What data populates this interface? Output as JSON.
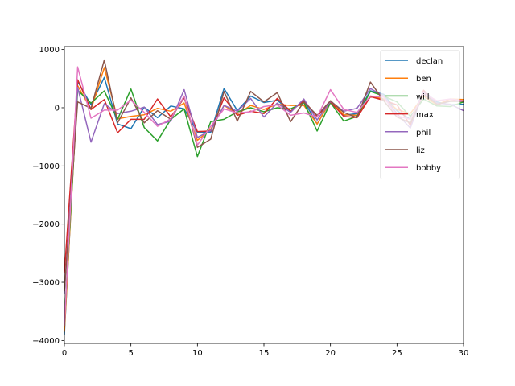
{
  "chart_data": {
    "type": "line",
    "title": "",
    "xlabel": "",
    "ylabel": "",
    "xlim": [
      0,
      30
    ],
    "ylim": [
      -4050,
      1050
    ],
    "xticks": [
      0,
      5,
      10,
      15,
      20,
      25,
      30
    ],
    "yticks": [
      -4000,
      -3000,
      -2000,
      -1000,
      0,
      1000
    ],
    "xtick_labels": [
      "0",
      "5",
      "10",
      "15",
      "20",
      "25",
      "30"
    ],
    "ytick_labels": [
      "−4000",
      "−3000",
      "−2000",
      "−1000",
      "0",
      "1000"
    ],
    "grid": false,
    "legend_position": "top-right",
    "x": [
      0,
      1,
      2,
      3,
      4,
      5,
      6,
      7,
      8,
      9,
      10,
      11,
      12,
      13,
      14,
      15,
      16,
      17,
      18,
      19,
      20,
      21,
      22,
      23,
      24,
      25,
      26,
      27,
      28,
      29,
      30
    ],
    "series": [
      {
        "name": "declan",
        "color": "#1f77b4",
        "values": [
          -3900,
          450,
          50,
          520,
          -280,
          -360,
          10,
          -170,
          30,
          -20,
          -420,
          -420,
          330,
          -50,
          200,
          90,
          130,
          -60,
          120,
          -280,
          110,
          -130,
          -100,
          290,
          230,
          -50,
          -200,
          280,
          100,
          50,
          60
        ]
      },
      {
        "name": "ben",
        "color": "#ff7f0e",
        "values": [
          -3850,
          380,
          -30,
          690,
          -190,
          -150,
          -120,
          -10,
          -60,
          80,
          -560,
          -370,
          40,
          -110,
          40,
          -30,
          60,
          40,
          40,
          -280,
          120,
          -120,
          -130,
          200,
          150,
          -30,
          -100,
          200,
          50,
          150,
          140
        ]
      },
      {
        "name": "will",
        "color": "#2ca02c",
        "values": [
          -3650,
          300,
          80,
          290,
          -200,
          320,
          -340,
          -570,
          -200,
          -20,
          -840,
          -240,
          -200,
          -70,
          0,
          -70,
          0,
          -20,
          90,
          -400,
          90,
          -230,
          -150,
          280,
          200,
          100,
          -150,
          150,
          30,
          20,
          100
        ]
      },
      {
        "name": "max",
        "color": "#d62728",
        "values": [
          -2850,
          480,
          -30,
          140,
          -430,
          -200,
          -200,
          150,
          -160,
          170,
          -410,
          -400,
          170,
          -130,
          -60,
          -100,
          160,
          -60,
          120,
          -150,
          100,
          -150,
          -170,
          190,
          130,
          50,
          -300,
          300,
          50,
          120,
          120
        ]
      },
      {
        "name": "phil",
        "color": "#9467bd",
        "values": [
          -3200,
          350,
          -590,
          70,
          -100,
          -60,
          10,
          -290,
          -230,
          310,
          -510,
          -390,
          40,
          -60,
          160,
          -160,
          80,
          -80,
          150,
          -210,
          110,
          -60,
          -10,
          330,
          200,
          -100,
          -350,
          270,
          80,
          60,
          -50
        ]
      },
      {
        "name": "liz",
        "color": "#8c564b",
        "values": [
          -3150,
          100,
          -10,
          820,
          -260,
          170,
          -260,
          -50,
          -200,
          190,
          -680,
          -540,
          280,
          -230,
          280,
          100,
          260,
          -240,
          100,
          -130,
          120,
          -80,
          -170,
          440,
          120,
          -160,
          -260,
          240,
          60,
          110,
          110
        ]
      },
      {
        "name": "bobby",
        "color": "#e377c2",
        "values": [
          -3750,
          700,
          -180,
          -40,
          -40,
          130,
          -80,
          -320,
          -190,
          200,
          -640,
          -320,
          -20,
          -90,
          -70,
          20,
          50,
          -130,
          -90,
          -160,
          310,
          -30,
          -80,
          200,
          180,
          -140,
          -200,
          250,
          120,
          150,
          120
        ]
      }
    ]
  }
}
